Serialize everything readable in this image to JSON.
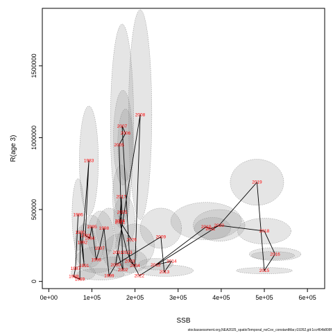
{
  "chart_data": {
    "type": "scatter",
    "xlabel": "SSB",
    "ylabel": "R(age 3)",
    "xlim": [
      -15000,
      640000
    ],
    "ylim": [
      -50000,
      1900000
    ],
    "x_ticks": [
      {
        "value": 0,
        "label": "0e+00"
      },
      {
        "value": 100000,
        "label": "1e+05"
      },
      {
        "value": 200000,
        "label": "2e+05"
      },
      {
        "value": 300000,
        "label": "3e+05"
      },
      {
        "value": 400000,
        "label": "4e+05"
      },
      {
        "value": 500000,
        "label": "5e+05"
      },
      {
        "value": 600000,
        "label": "6e+05"
      }
    ],
    "y_ticks": [
      {
        "value": 0,
        "label": "0"
      },
      {
        "value": 500000,
        "label": "500000"
      },
      {
        "value": 1000000,
        "label": "1000000"
      },
      {
        "value": 1500000,
        "label": "1500000"
      }
    ],
    "points": [
      {
        "label": "1983",
        "x": 93000,
        "y": 840000
      },
      {
        "label": "1986",
        "x": 68000,
        "y": 465000
      },
      {
        "label": "1987",
        "x": 62000,
        "y": 90000
      },
      {
        "label": "1988",
        "x": 58000,
        "y": 35000
      },
      {
        "label": "1989",
        "x": 72000,
        "y": 15000
      },
      {
        "label": "1990",
        "x": 73000,
        "y": 340000
      },
      {
        "label": "1991",
        "x": 82000,
        "y": 110000
      },
      {
        "label": "1992",
        "x": 78000,
        "y": 270000
      },
      {
        "label": "1993",
        "x": 85000,
        "y": 320000
      },
      {
        "label": "1994",
        "x": 95000,
        "y": 300000
      },
      {
        "label": "1995",
        "x": 100000,
        "y": 380000
      },
      {
        "label": "1996",
        "x": 110000,
        "y": 150000
      },
      {
        "label": "1997",
        "x": 118000,
        "y": 230000
      },
      {
        "label": "1998",
        "x": 128000,
        "y": 370000
      },
      {
        "label": "1999",
        "x": 140000,
        "y": 40000
      },
      {
        "label": "2000",
        "x": 155000,
        "y": 115000
      },
      {
        "label": "2001",
        "x": 160000,
        "y": 200000
      },
      {
        "label": "2002",
        "x": 172000,
        "y": 80000
      },
      {
        "label": "2003",
        "x": 188000,
        "y": 140000
      },
      {
        "label": "2004",
        "x": 200000,
        "y": 110000
      },
      {
        "label": "2005",
        "x": 163000,
        "y": 950000
      },
      {
        "label": "2006",
        "x": 178000,
        "y": 1030000
      },
      {
        "label": "2007",
        "x": 170000,
        "y": 1080000
      },
      {
        "label": "2008",
        "x": 212000,
        "y": 1160000
      },
      {
        "label": "2009",
        "x": 260000,
        "y": 310000
      },
      {
        "label": "2010",
        "x": 365000,
        "y": 380000
      },
      {
        "label": "2011",
        "x": 375000,
        "y": 365000
      },
      {
        "label": "2012",
        "x": 248000,
        "y": 115000
      },
      {
        "label": "2013",
        "x": 268000,
        "y": 65000
      },
      {
        "label": "2014",
        "x": 285000,
        "y": 140000
      },
      {
        "label": "2015",
        "x": 500000,
        "y": 75000
      },
      {
        "label": "2016",
        "x": 525000,
        "y": 190000
      },
      {
        "label": "2017",
        "x": 168000,
        "y": 590000
      },
      {
        "label": "2018",
        "x": 500000,
        "y": 350000
      },
      {
        "label": "2019",
        "x": 483000,
        "y": 690000
      },
      {
        "label": "2020",
        "x": 395000,
        "y": 390000
      },
      {
        "label": "2021",
        "x": 165000,
        "y": 410000
      },
      {
        "label": "2022",
        "x": 210000,
        "y": 40000
      },
      {
        "label": "2023",
        "x": 182000,
        "y": 200000
      },
      {
        "label": "2024",
        "x": 165000,
        "y": 420000
      },
      {
        "label": "2025",
        "x": 170000,
        "y": 480000
      },
      {
        "label": "2026",
        "x": 192000,
        "y": 290000
      }
    ],
    "ellipses": [
      {
        "cx": 212000,
        "cy": 1160000,
        "rx": 27000,
        "ry": 730000
      },
      {
        "cx": 170000,
        "cy": 1100000,
        "rx": 27000,
        "ry": 690000
      },
      {
        "cx": 93000,
        "cy": 840000,
        "rx": 22000,
        "ry": 380000
      },
      {
        "cx": 172000,
        "cy": 1000000,
        "rx": 22000,
        "ry": 330000
      },
      {
        "cx": 178000,
        "cy": 950000,
        "rx": 18000,
        "ry": 250000
      },
      {
        "cx": 68000,
        "cy": 465000,
        "rx": 14000,
        "ry": 250000
      },
      {
        "cx": 168000,
        "cy": 590000,
        "rx": 20000,
        "ry": 220000
      },
      {
        "cx": 483000,
        "cy": 690000,
        "rx": 62000,
        "ry": 160000
      },
      {
        "cx": 500000,
        "cy": 350000,
        "rx": 62000,
        "ry": 90000
      },
      {
        "cx": 525000,
        "cy": 190000,
        "rx": 60000,
        "ry": 45000
      },
      {
        "cx": 520000,
        "cy": 180000,
        "rx": 50000,
        "ry": 28000
      },
      {
        "cx": 500000,
        "cy": 75000,
        "rx": 65000,
        "ry": 22000
      },
      {
        "cx": 365000,
        "cy": 420000,
        "rx": 82000,
        "ry": 130000
      },
      {
        "cx": 395000,
        "cy": 390000,
        "rx": 60000,
        "ry": 110000
      },
      {
        "cx": 380000,
        "cy": 370000,
        "rx": 42000,
        "ry": 75000
      },
      {
        "cx": 260000,
        "cy": 370000,
        "rx": 48000,
        "ry": 140000
      },
      {
        "cx": 270000,
        "cy": 75000,
        "rx": 65000,
        "ry": 40000
      },
      {
        "cx": 248000,
        "cy": 120000,
        "rx": 40000,
        "ry": 40000
      },
      {
        "cx": 200000,
        "cy": 250000,
        "rx": 45000,
        "ry": 150000
      },
      {
        "cx": 175000,
        "cy": 420000,
        "rx": 25000,
        "ry": 180000
      },
      {
        "cx": 140000,
        "cy": 360000,
        "rx": 30000,
        "ry": 150000
      },
      {
        "cx": 120000,
        "cy": 320000,
        "rx": 30000,
        "ry": 170000
      },
      {
        "cx": 100000,
        "cy": 280000,
        "rx": 28000,
        "ry": 180000
      },
      {
        "cx": 85000,
        "cy": 250000,
        "rx": 25000,
        "ry": 150000
      },
      {
        "cx": 110000,
        "cy": 150000,
        "rx": 48000,
        "ry": 90000
      },
      {
        "cx": 150000,
        "cy": 100000,
        "rx": 55000,
        "ry": 70000
      },
      {
        "cx": 190000,
        "cy": 140000,
        "rx": 38000,
        "ry": 80000
      },
      {
        "cx": 80000,
        "cy": 60000,
        "rx": 28000,
        "ry": 50000
      },
      {
        "cx": 120000,
        "cy": 50000,
        "rx": 55000,
        "ry": 40000
      },
      {
        "cx": 165000,
        "cy": 200000,
        "rx": 40000,
        "ry": 130000
      }
    ],
    "trajectory": [
      [
        68000,
        465000
      ],
      [
        62000,
        90000
      ],
      [
        58000,
        35000
      ],
      [
        72000,
        15000
      ],
      [
        73000,
        340000
      ],
      [
        82000,
        110000
      ],
      [
        78000,
        270000
      ],
      [
        93000,
        840000
      ],
      [
        85000,
        320000
      ],
      [
        95000,
        300000
      ],
      [
        100000,
        380000
      ],
      [
        110000,
        150000
      ],
      [
        118000,
        230000
      ],
      [
        128000,
        370000
      ],
      [
        140000,
        40000
      ],
      [
        155000,
        115000
      ],
      [
        160000,
        200000
      ],
      [
        172000,
        80000
      ],
      [
        163000,
        950000
      ],
      [
        178000,
        1030000
      ],
      [
        170000,
        1080000
      ],
      [
        188000,
        140000
      ],
      [
        200000,
        110000
      ],
      [
        212000,
        1160000
      ],
      [
        155000,
        115000
      ],
      [
        260000,
        310000
      ],
      [
        268000,
        65000
      ],
      [
        285000,
        140000
      ],
      [
        248000,
        115000
      ],
      [
        365000,
        380000
      ],
      [
        375000,
        365000
      ],
      [
        395000,
        390000
      ],
      [
        483000,
        690000
      ],
      [
        500000,
        75000
      ],
      [
        525000,
        190000
      ],
      [
        500000,
        350000
      ],
      [
        395000,
        390000
      ],
      [
        210000,
        40000
      ],
      [
        182000,
        200000
      ],
      [
        165000,
        410000
      ],
      [
        170000,
        480000
      ],
      [
        168000,
        590000
      ],
      [
        165000,
        420000
      ],
      [
        192000,
        290000
      ]
    ]
  },
  "footer_text": "stockassessment.org,NEA2025_spatioTemporal_noCov_constantMar,r19262,git:1cc464b808f"
}
